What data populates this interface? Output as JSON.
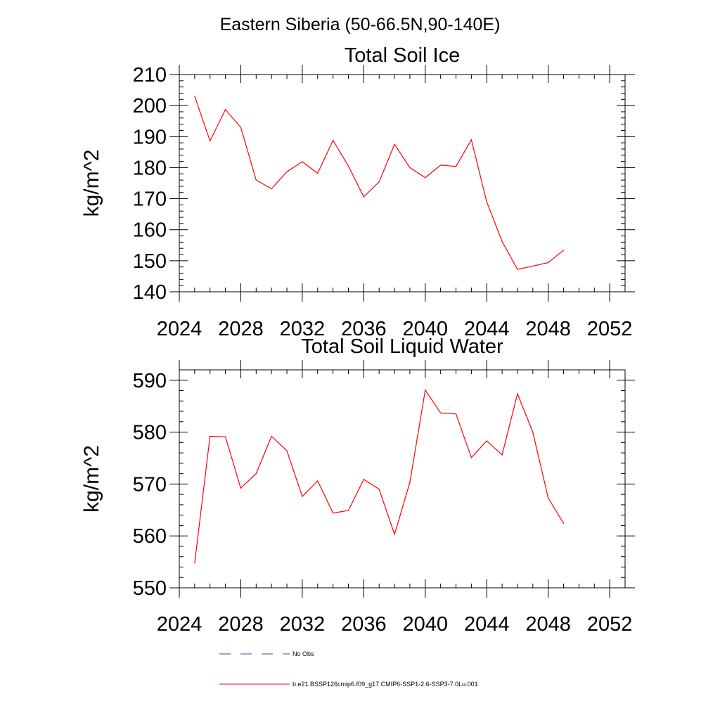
{
  "figure_title": "Eastern Siberia (50-66.5N,90-140E)",
  "legend": [
    {
      "label": "No Obs",
      "color": "#3b4a9a",
      "style": "dashed"
    },
    {
      "label": "b.e21.BSSP126cmip6.f09_g17.CMIP6-SSP1-2.6-SSP3-7.0Lu.001",
      "color": "#ff0000",
      "style": "solid"
    }
  ],
  "chart_data": [
    {
      "type": "line",
      "title": "Total Soil Ice",
      "xlabel": "",
      "ylabel": "kg/m^2",
      "xlim": [
        2024,
        2053
      ],
      "ylim": [
        140,
        210
      ],
      "xticks": [
        2024,
        2028,
        2032,
        2036,
        2040,
        2044,
        2048,
        2052
      ],
      "yticks": [
        140,
        150,
        160,
        170,
        180,
        190,
        200,
        210
      ],
      "grid": false,
      "series": [
        {
          "color": "#ff0000",
          "x": [
            2025,
            2026,
            2027,
            2028,
            2029,
            2030,
            2031,
            2032,
            2033,
            2034,
            2035,
            2036,
            2037,
            2038,
            2039,
            2040,
            2041,
            2042,
            2043,
            2044,
            2045,
            2046,
            2047,
            2048,
            2049
          ],
          "values": [
            203,
            188.6,
            198.7,
            193,
            176,
            173.2,
            178.7,
            181.9,
            178.2,
            188.8,
            180.5,
            170.6,
            175.4,
            187.5,
            180,
            176.8,
            180.8,
            180.4,
            189,
            169,
            156.2,
            147.2,
            148.3,
            149.4,
            153.4
          ]
        }
      ]
    },
    {
      "type": "line",
      "title": "Total Soil Liquid Water",
      "xlabel": "",
      "ylabel": "kg/m^2",
      "xlim": [
        2024,
        2053
      ],
      "ylim": [
        550,
        592
      ],
      "xticks": [
        2024,
        2028,
        2032,
        2036,
        2040,
        2044,
        2048,
        2052
      ],
      "yticks": [
        550,
        560,
        570,
        580,
        590
      ],
      "grid": false,
      "series": [
        {
          "color": "#ff0000",
          "x": [
            2025,
            2026,
            2027,
            2028,
            2029,
            2030,
            2031,
            2032,
            2033,
            2034,
            2035,
            2036,
            2037,
            2038,
            2039,
            2040,
            2041,
            2042,
            2043,
            2044,
            2045,
            2046,
            2047,
            2048,
            2049
          ],
          "values": [
            554.8,
            579.2,
            579.1,
            569.2,
            572,
            579.2,
            576.4,
            567.6,
            570.6,
            564.4,
            564.9,
            570.9,
            569,
            560.3,
            570.3,
            588.1,
            583.7,
            583.5,
            575.1,
            578.3,
            575.6,
            587.4,
            580,
            567.3,
            562.4
          ]
        }
      ]
    }
  ]
}
